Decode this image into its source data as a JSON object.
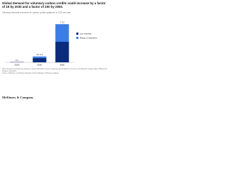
{
  "chart_data": {
    "type": "bar",
    "title": "Global demand for voluntary carbon credits could increase by a factor of 15 by 2030 and a factor of 100 by 2050.",
    "subtitle": "Voluntary demand scenarios for carbon credits, gigatons of CO2 per year",
    "categories": [
      "2020",
      "2030",
      "2050"
    ],
    "series": [
      {
        "name": "Low estimate",
        "color": "#0b2c7a",
        "values": [
          0.1,
          1.5,
          7
        ]
      },
      {
        "name": "Range of estimates",
        "color": "#3a7de8",
        "values": [
          0,
          0.5,
          6
        ]
      }
    ],
    "value_labels": [
      "0.1",
      "1.5–2.0",
      "7–13"
    ],
    "ylim": [
      0,
      14
    ],
    "stacked": true,
    "footnote": "Note: Demand scenarios are based on expert interviews, survey responses and analysis of net-zero commitments; ranges reflect differences between scenarios.",
    "source": "Source: Taskforce on Scaling Voluntary Carbon Markets; McKinsey analysis",
    "logo": "McKinsey & Company"
  }
}
